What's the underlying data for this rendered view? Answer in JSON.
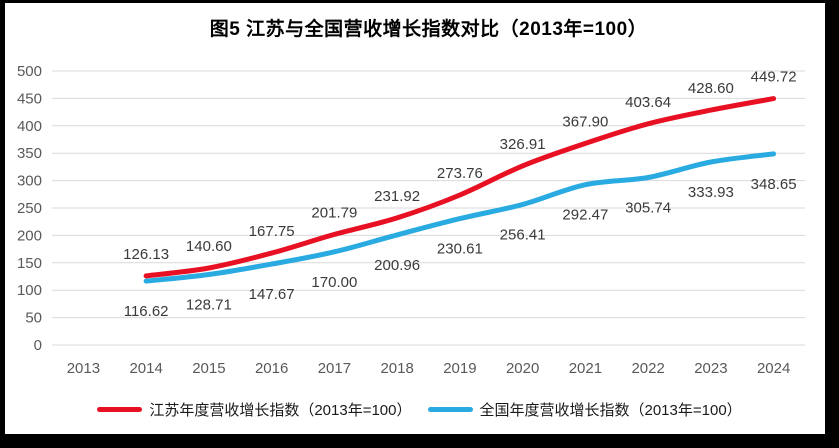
{
  "title": "图5  江苏与全国营收增长指数对比（2013年=100）",
  "chart_data": {
    "type": "line",
    "title": "图5  江苏与全国营收增长指数对比（2013年=100）",
    "categories": [
      "2013",
      "2014",
      "2015",
      "2016",
      "2017",
      "2018",
      "2019",
      "2020",
      "2021",
      "2022",
      "2023",
      "2024"
    ],
    "series": [
      {
        "name": "江苏年度营收增长指数（2013年=100）",
        "color": "#e81123",
        "label_position": "above",
        "values": [
          null,
          126.13,
          140.6,
          167.75,
          201.79,
          231.92,
          273.76,
          326.91,
          367.9,
          403.64,
          428.6,
          449.72
        ]
      },
      {
        "name": "全国年度营收增长指数（2013年=100）",
        "color": "#29abe2",
        "label_position": "below",
        "values": [
          null,
          116.62,
          128.71,
          147.67,
          170.0,
          200.96,
          230.61,
          256.41,
          292.47,
          305.74,
          333.93,
          348.65
        ]
      }
    ],
    "xlabel": "",
    "ylabel": "",
    "ylim": [
      0,
      500
    ],
    "ytick_step": 50,
    "grid": true,
    "legend_position": "bottom",
    "line_smooth": true,
    "colors": {
      "grid": "#d9d9d9",
      "axis_text": "#595959",
      "data_label_text": "#3a3a3a",
      "frame": "#000000"
    }
  }
}
